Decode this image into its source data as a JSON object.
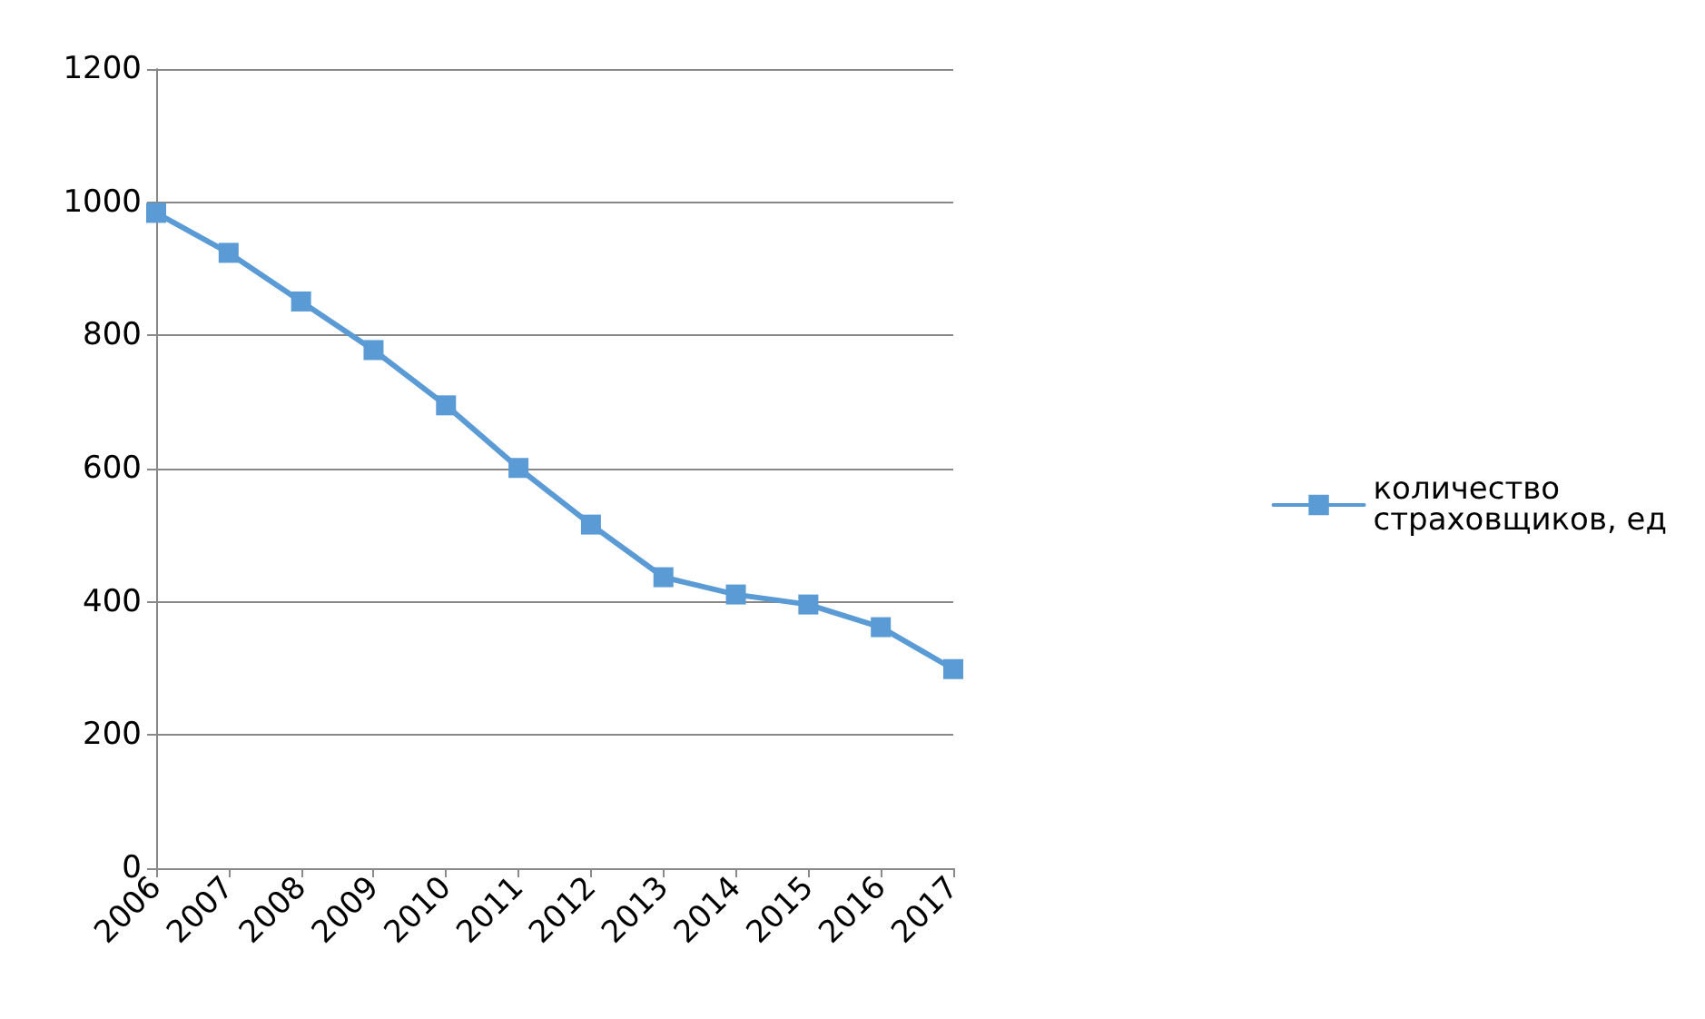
{
  "chart_data": {
    "type": "line",
    "categories": [
      "2006",
      "2007",
      "2008",
      "2009",
      "2010",
      "2011",
      "2012",
      "2013",
      "2014",
      "2015",
      "2016",
      "2017"
    ],
    "series": [
      {
        "name": "количество страховщиков, ед",
        "color": "#5b9bd5",
        "values": [
          984,
          924,
          851,
          778,
          695,
          601,
          516,
          437,
          411,
          396,
          362,
          299
        ]
      }
    ],
    "ylim": [
      0,
      1200
    ],
    "yticks": [
      0,
      200,
      400,
      600,
      800,
      1000,
      1200
    ],
    "grid": "y",
    "legend": "right",
    "marker": "square",
    "line_style": "solid"
  }
}
